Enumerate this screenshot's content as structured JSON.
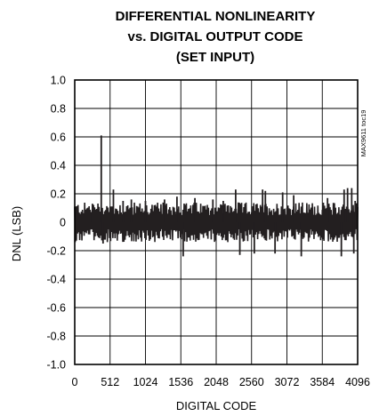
{
  "chart_data": {
    "type": "line",
    "title": [
      "DIFFERENTIAL NONLINEARITY",
      "vs. DIGITAL OUTPUT CODE",
      "(SET INPUT)"
    ],
    "xlabel": "DIGITAL CODE",
    "ylabel": "DNL (LSB)",
    "side_note": "MAX9611 toc19",
    "xlim": [
      0,
      4096
    ],
    "ylim": [
      -1.0,
      1.0
    ],
    "x_ticks": [
      0,
      512,
      1024,
      1536,
      2048,
      2560,
      3072,
      3584,
      4096
    ],
    "y_ticks": [
      1.0,
      0.8,
      0.6,
      0.4,
      0.2,
      0,
      -0.2,
      -0.4,
      -0.6,
      -0.8,
      -1.0
    ],
    "y_tick_labels": [
      "1.0",
      "0.8",
      "0.6",
      "0.4",
      "0.2",
      "0",
      "-0.2",
      "-0.4",
      "-0.6",
      "-0.8",
      "-1.0"
    ],
    "grid": true,
    "series_color": "#231f20",
    "noise_band": {
      "x_start": 0,
      "x_end": 4096,
      "typical_high": 0.14,
      "typical_low": -0.14,
      "step": 8
    },
    "spikes": [
      {
        "x": 256,
        "y": 0.13
      },
      {
        "x": 384,
        "y": 0.61
      },
      {
        "x": 410,
        "y": -0.15
      },
      {
        "x": 560,
        "y": 0.23
      },
      {
        "x": 700,
        "y": 0.15
      },
      {
        "x": 820,
        "y": 0.16
      },
      {
        "x": 1024,
        "y": 0.15
      },
      {
        "x": 1300,
        "y": 0.16
      },
      {
        "x": 1480,
        "y": 0.18
      },
      {
        "x": 1570,
        "y": -0.24
      },
      {
        "x": 1740,
        "y": 0.17
      },
      {
        "x": 2000,
        "y": 0.16
      },
      {
        "x": 2150,
        "y": 0.15
      },
      {
        "x": 2330,
        "y": 0.23
      },
      {
        "x": 2390,
        "y": -0.23
      },
      {
        "x": 2600,
        "y": -0.22
      },
      {
        "x": 2720,
        "y": 0.23
      },
      {
        "x": 2760,
        "y": 0.22
      },
      {
        "x": 2900,
        "y": -0.22
      },
      {
        "x": 3010,
        "y": 0.21
      },
      {
        "x": 3170,
        "y": 0.19
      },
      {
        "x": 3280,
        "y": -0.24
      },
      {
        "x": 3660,
        "y": 0.17
      },
      {
        "x": 3860,
        "y": -0.24
      },
      {
        "x": 3900,
        "y": 0.23
      },
      {
        "x": 3950,
        "y": 0.24
      },
      {
        "x": 4010,
        "y": 0.24
      },
      {
        "x": 4040,
        "y": -0.22
      },
      {
        "x": 4060,
        "y": 0.15
      }
    ]
  }
}
